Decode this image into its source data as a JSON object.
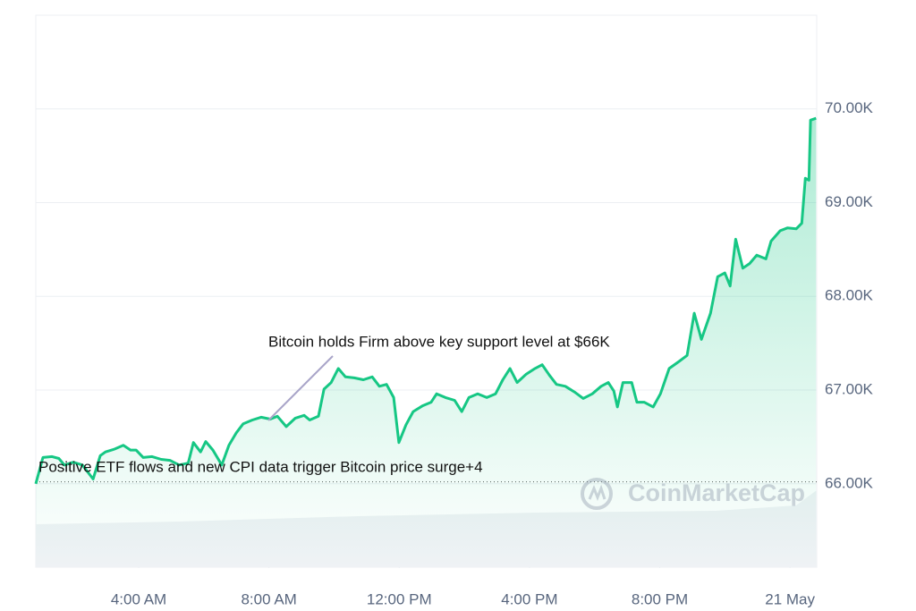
{
  "chart_data": {
    "type": "line",
    "color": "#16c784",
    "xlim": [
      0.84,
      24.82
    ],
    "xticks": [
      {
        "value": 4,
        "label": "4:00 AM"
      },
      {
        "value": 8,
        "label": "8:00 AM"
      },
      {
        "value": 12,
        "label": "12:00 PM"
      },
      {
        "value": 16,
        "label": "4:00 PM"
      },
      {
        "value": 20,
        "label": "8:00 PM"
      },
      {
        "value": 24,
        "label": "21 May"
      }
    ],
    "ylim": [
      65110,
      71000
    ],
    "yticks": [
      {
        "value": 66000,
        "label": "66.00K"
      },
      {
        "value": 67000,
        "label": "67.00K"
      },
      {
        "value": 68000,
        "label": "68.00K"
      },
      {
        "value": 69000,
        "label": "69.00K"
      },
      {
        "value": 70000,
        "label": "70.00K"
      }
    ],
    "grid": true,
    "baseline_value": 66020,
    "annotations": [
      "Bitcoin holds Firm above key support level at $66K",
      "Positive ETF flows and new CPI data trigger Bitcoin price surge+4"
    ],
    "watermark": "CoinMarketCap",
    "x": [
      0.84,
      1.06,
      1.34,
      1.55,
      1.72,
      1.99,
      2.27,
      2.6,
      2.82,
      2.98,
      3.26,
      3.53,
      3.75,
      3.92,
      4.14,
      4.41,
      4.69,
      4.96,
      5.24,
      5.52,
      5.68,
      5.9,
      6.06,
      6.28,
      6.55,
      6.77,
      6.99,
      7.21,
      7.49,
      7.76,
      8.04,
      8.26,
      8.53,
      8.81,
      9.08,
      9.25,
      9.52,
      9.69,
      9.91,
      10.13,
      10.35,
      10.62,
      10.9,
      11.17,
      11.39,
      11.61,
      11.83,
      11.99,
      12.21,
      12.43,
      12.71,
      12.98,
      13.15,
      13.42,
      13.7,
      13.92,
      14.14,
      14.41,
      14.69,
      14.96,
      15.18,
      15.4,
      15.62,
      15.9,
      16.17,
      16.39,
      16.61,
      16.83,
      17.1,
      17.38,
      17.65,
      17.93,
      18.2,
      18.42,
      18.59,
      18.7,
      18.87,
      19.14,
      19.3,
      19.52,
      19.8,
      20.02,
      20.29,
      20.57,
      20.84,
      21.06,
      21.28,
      21.56,
      21.78,
      22.0,
      22.16,
      22.33,
      22.55,
      22.76,
      22.98,
      23.26,
      23.42,
      23.7,
      23.92,
      24.19,
      24.36,
      24.47,
      24.58,
      24.63,
      24.8
    ],
    "values": [
      66000,
      66280,
      66290,
      66270,
      66200,
      66230,
      66200,
      66050,
      66300,
      66340,
      66370,
      66410,
      66360,
      66360,
      66280,
      66290,
      66260,
      66250,
      66200,
      66220,
      66440,
      66340,
      66450,
      66360,
      66200,
      66410,
      66540,
      66640,
      66680,
      66710,
      66690,
      66720,
      66610,
      66700,
      66730,
      66680,
      66720,
      67010,
      67080,
      67230,
      67140,
      67130,
      67110,
      67140,
      67040,
      67060,
      66920,
      66440,
      66630,
      66770,
      66830,
      66870,
      66960,
      66920,
      66890,
      66770,
      66920,
      66960,
      66920,
      66960,
      67110,
      67230,
      67080,
      67170,
      67230,
      67270,
      67160,
      67060,
      67040,
      66980,
      66910,
      66960,
      67040,
      67080,
      66990,
      66820,
      67080,
      67080,
      66870,
      66870,
      66820,
      66960,
      67230,
      67300,
      67370,
      67820,
      67540,
      67820,
      68210,
      68250,
      68110,
      68610,
      68300,
      68350,
      68440,
      68400,
      68590,
      68700,
      68730,
      68720,
      68780,
      69260,
      69240,
      69880,
      69900
    ]
  }
}
